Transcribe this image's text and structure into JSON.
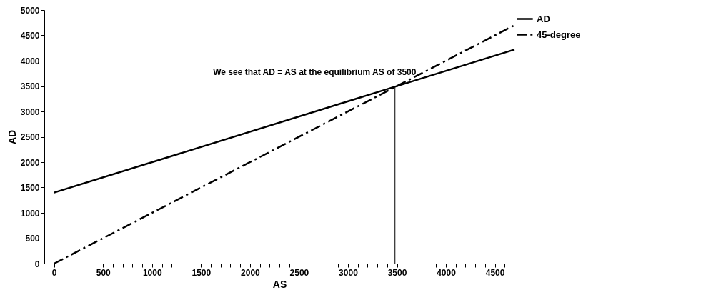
{
  "chart_data": {
    "type": "line",
    "xlabel": "AS",
    "ylabel": "AD",
    "x": [
      0,
      4700
    ],
    "xlim": [
      -100,
      4700
    ],
    "ylim": [
      0,
      5000
    ],
    "xticks": [
      0,
      {
        "value": 100,
        "label": null
      },
      {
        "value": 200,
        "label": null
      },
      {
        "value": 300,
        "label": null
      },
      {
        "value": 400,
        "label": null
      },
      500,
      {
        "value": 600,
        "label": null
      },
      {
        "value": 700,
        "label": null
      },
      {
        "value": 800,
        "label": null
      },
      {
        "value": 900,
        "label": null
      },
      1000,
      {
        "value": 1100,
        "label": null
      },
      {
        "value": 1200,
        "label": null
      },
      {
        "value": 1300,
        "label": null
      },
      {
        "value": 1400,
        "label": null
      },
      1500,
      {
        "value": 1600,
        "label": null
      },
      {
        "value": 1700,
        "label": null
      },
      {
        "value": 1800,
        "label": null
      },
      {
        "value": 1900,
        "label": null
      },
      2000,
      {
        "value": 2100,
        "label": null
      },
      {
        "value": 2200,
        "label": null
      },
      {
        "value": 2300,
        "label": null
      },
      {
        "value": 2400,
        "label": null
      },
      2500,
      {
        "value": 2600,
        "label": null
      },
      {
        "value": 2700,
        "label": null
      },
      {
        "value": 2800,
        "label": null
      },
      {
        "value": 2900,
        "label": null
      },
      3000,
      {
        "value": 3100,
        "label": null
      },
      {
        "value": 3200,
        "label": null
      },
      {
        "value": 3300,
        "label": null
      },
      {
        "value": 3400,
        "label": null
      },
      3500,
      {
        "value": 3600,
        "label": null
      },
      {
        "value": 3700,
        "label": null
      },
      {
        "value": 3800,
        "label": null
      },
      {
        "value": 3900,
        "label": null
      },
      4000,
      {
        "value": 4100,
        "label": null
      },
      {
        "value": 4200,
        "label": null
      },
      {
        "value": 4300,
        "label": null
      },
      {
        "value": 4400,
        "label": null
      },
      4500,
      {
        "value": 4600,
        "label": null
      }
    ],
    "yticks": [
      0,
      500,
      1000,
      1500,
      2000,
      2500,
      3000,
      3500,
      4000,
      4500,
      5000
    ],
    "series": [
      {
        "name": "AD",
        "color": "#000000",
        "line_style": "solid",
        "values": [
          1400,
          4220
        ]
      },
      {
        "name": "45-degree",
        "color": "#000000",
        "line_style": "dashed",
        "values": [
          0,
          4700
        ]
      }
    ],
    "ref_lines": [
      {
        "axis": "y",
        "value": 3500,
        "color": "#000000"
      },
      {
        "axis": "x",
        "value": 3480,
        "color": "#000000"
      }
    ],
    "annotations": [
      "We see that AD = AS at the equilibrium AS of 3500"
    ],
    "legend": "right",
    "grid": false
  }
}
